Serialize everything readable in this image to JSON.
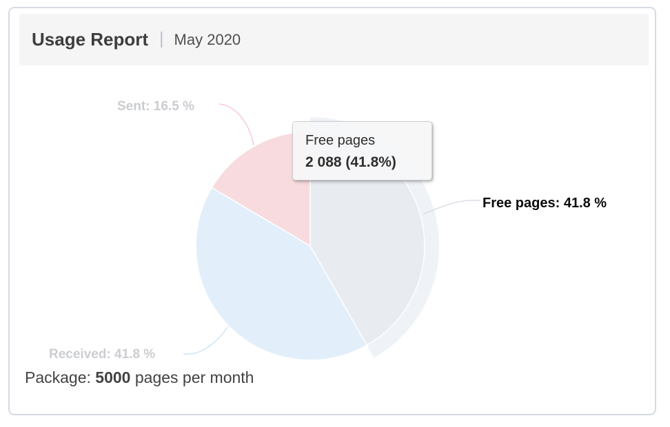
{
  "header": {
    "title": "Usage Report",
    "divider": "|",
    "subtitle": "May 2020"
  },
  "chart_data": {
    "type": "pie",
    "title": "Usage Report",
    "subtitle": "May 2020",
    "unit": "pages",
    "direction": "clockwise",
    "start_angle_deg": 0,
    "legend": "none",
    "halo_color": "rgba(226,231,238,0.55)",
    "slice_border_color": "#ffffff",
    "segments": [
      {
        "name": "Free pages",
        "pct": 41.8,
        "value": 2088,
        "color": "#e8ebf0",
        "connector_color": "#d9dee5",
        "state": "hovered",
        "label": "Free pages: 41.8 %"
      },
      {
        "name": "Received",
        "pct": 41.8,
        "color": "#e2effa",
        "connector_color": "#cfe4f5",
        "state": "inactive",
        "label": "Received: 41.8 %"
      },
      {
        "name": "Sent",
        "pct": 16.5,
        "color": "#f7dbdf",
        "connector_color": "#f5ccd3",
        "state": "inactive",
        "label": "Sent: 16.5 %"
      }
    ],
    "tooltip": {
      "series": "Free pages",
      "value_text": "2 088 (41.8%)"
    },
    "package_total_pages": 5000,
    "footer": "Package: 5000 pages per month"
  },
  "footer": {
    "prefix": "Package: ",
    "value": "5000",
    "suffix": " pages per month"
  }
}
